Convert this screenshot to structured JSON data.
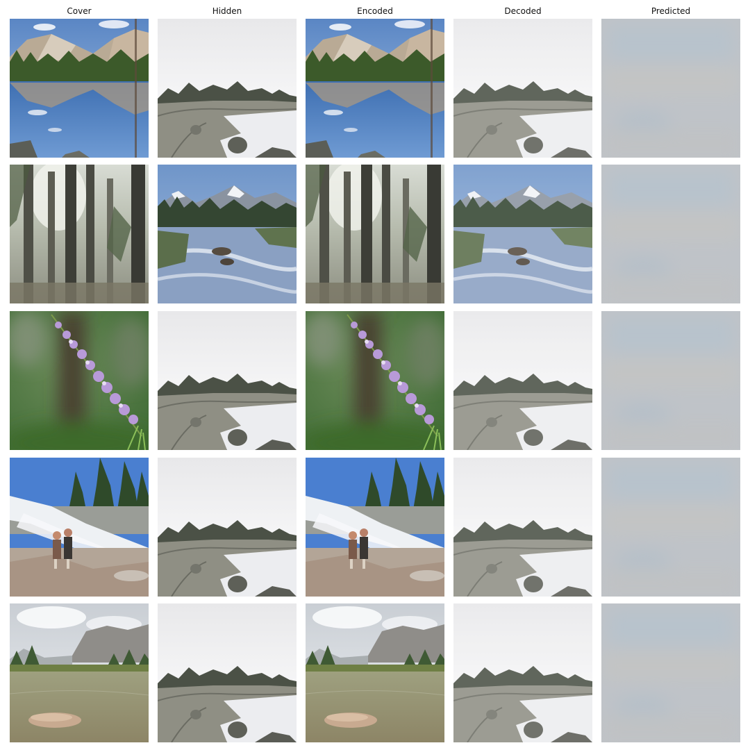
{
  "columns": [
    "Cover",
    "Hidden",
    "Encoded",
    "Decoded",
    "Predicted"
  ],
  "rows": [
    {
      "cover": "mountain-lake-reflection",
      "hidden": "rocky-shore-lake",
      "encoded": "mountain-lake-reflection",
      "decoded": "rocky-shore-lake",
      "predicted": "blurred-gray-blue"
    },
    {
      "cover": "forest-trees",
      "hidden": "mountain-river",
      "encoded": "forest-trees",
      "decoded": "mountain-river",
      "predicted": "blurred-gray-blue"
    },
    {
      "cover": "purple-lupine-flower",
      "hidden": "rocky-shore-lake",
      "encoded": "purple-lupine-flower",
      "decoded": "rocky-shore-lake",
      "predicted": "blurred-gray-blue"
    },
    {
      "cover": "waterfall-couple",
      "hidden": "rocky-shore-lake",
      "encoded": "waterfall-couple",
      "decoded": "rocky-shore-lake",
      "predicted": "blurred-gray-blue"
    },
    {
      "cover": "valley-river-rock",
      "hidden": "rocky-shore-lake",
      "encoded": "valley-river-rock",
      "decoded": "rocky-shore-lake",
      "predicted": "blurred-gray-blue"
    }
  ]
}
